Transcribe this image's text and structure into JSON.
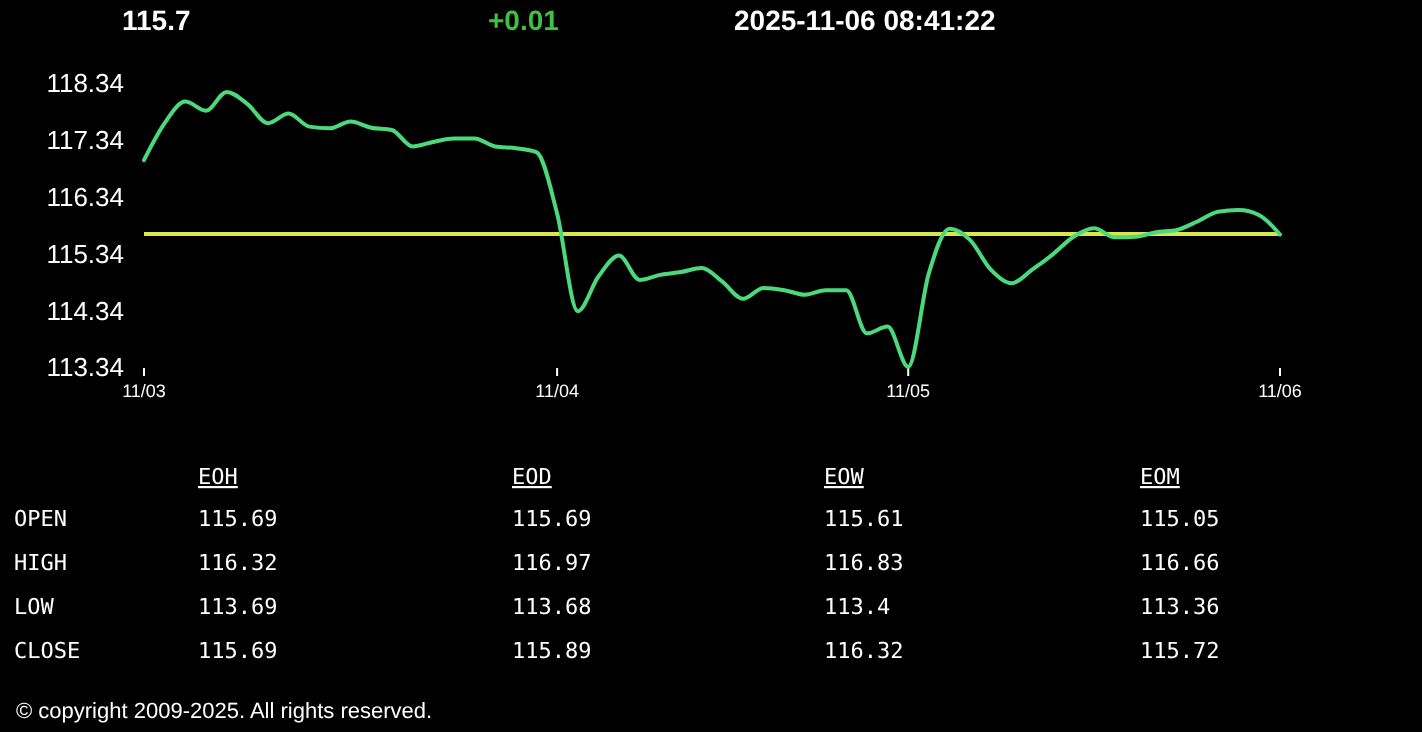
{
  "chart_data": [
    {
      "type": "line",
      "annotations": [
        "115.7",
        "+0.01",
        "2025-11-06 08:41:22",
        "© copyright 2009-2025. All rights reserved."
      ],
      "categories": [
        "11/03",
        null,
        null,
        null,
        null,
        null,
        null,
        null,
        null,
        null,
        null,
        null,
        null,
        null,
        null,
        null,
        null,
        null,
        null,
        null,
        "11/04",
        null,
        null,
        null,
        null,
        null,
        null,
        null,
        null,
        null,
        null,
        null,
        null,
        null,
        null,
        null,
        null,
        "11/05",
        null,
        null,
        null,
        null,
        null,
        null,
        null,
        null,
        null,
        null,
        null,
        null,
        null,
        null,
        null,
        null,
        null,
        "11/06"
      ],
      "ylim": [
        113.34,
        118.34
      ],
      "yticks": [
        113.34,
        114.34,
        115.34,
        116.34,
        117.34,
        118.34
      ],
      "ref_lines": [
        {
          "axis": "y",
          "value": 115.7,
          "color": "#d8e64c"
        }
      ],
      "series": [
        {
          "color": "#4cd97b",
          "values": [
            117.0,
            117.65,
            118.03,
            117.87,
            118.2,
            117.99,
            117.65,
            117.82,
            117.59,
            117.56,
            117.68,
            117.57,
            117.53,
            117.24,
            117.32,
            117.38,
            117.38,
            117.24,
            117.21,
            117.14,
            116.06,
            114.34,
            114.95,
            115.32,
            114.89,
            114.98,
            115.03,
            115.1,
            114.86,
            114.56,
            114.75,
            114.71,
            114.63,
            114.71,
            114.71,
            113.95,
            114.07,
            113.36,
            115.01,
            115.79,
            115.59,
            115.07,
            114.83,
            115.07,
            115.34,
            115.65,
            115.8,
            115.64,
            115.65,
            115.73,
            115.77,
            115.92,
            116.09,
            116.12,
            116.03,
            115.69
          ]
        }
      ]
    },
    {
      "type": "other",
      "data_labels": true,
      "categories": [
        "OPEN",
        "HIGH",
        "LOW",
        "CLOSE"
      ],
      "series": [
        {
          "name": "EOH",
          "values": [
            115.69,
            116.32,
            113.69,
            115.69
          ]
        },
        {
          "name": "EOD",
          "values": [
            115.69,
            116.97,
            113.68,
            115.89
          ]
        },
        {
          "name": "EOW",
          "values": [
            115.61,
            116.83,
            113.4,
            116.32
          ]
        },
        {
          "name": "EOM",
          "values": [
            115.05,
            116.66,
            113.36,
            115.72
          ]
        }
      ]
    }
  ]
}
